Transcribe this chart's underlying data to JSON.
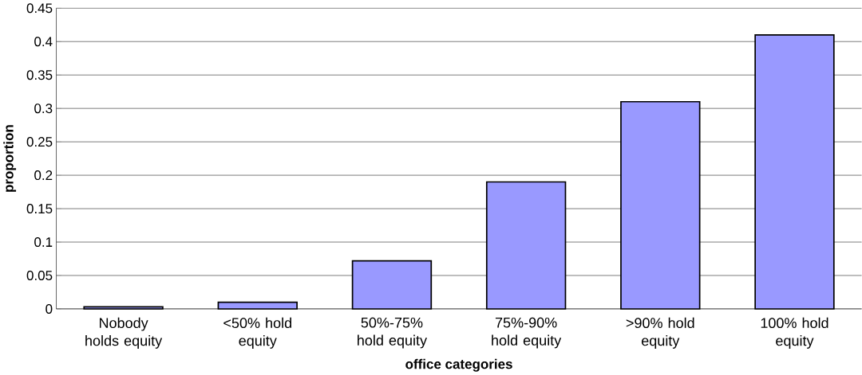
{
  "chart_data": {
    "type": "bar",
    "xlabel": "office categories",
    "ylabel": "proportion",
    "categories": [
      "Nobody holds equity",
      "<50% hold equity",
      "50%-75% hold equity",
      "75%-90% hold equity",
      ">90% hold equity",
      "100% hold equity"
    ],
    "values": [
      0.003,
      0.01,
      0.072,
      0.19,
      0.31,
      0.41
    ],
    "color": "#9999ff",
    "ylim": [
      0,
      0.45
    ],
    "yticks": [
      0,
      0.05,
      0.1,
      0.15,
      0.2,
      0.25,
      0.3,
      0.35,
      0.4,
      0.45
    ],
    "grid": "y"
  }
}
